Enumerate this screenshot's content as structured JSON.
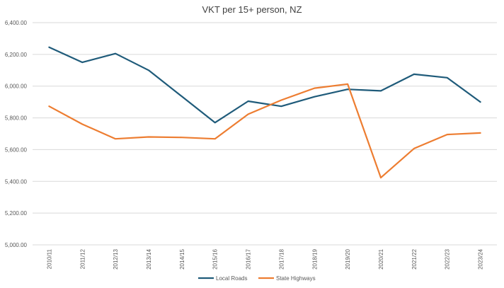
{
  "chart_data": {
    "type": "line",
    "title": "VKT per 15+ person, NZ",
    "xlabel": "",
    "ylabel": "",
    "ylim": [
      5000,
      6400
    ],
    "yticks": [
      "5,000.00",
      "5,200.00",
      "5,400.00",
      "5,600.00",
      "5,800.00",
      "6,000.00",
      "6,200.00",
      "6,400.00"
    ],
    "ytick_values": [
      5000,
      5200,
      5400,
      5600,
      5800,
      6000,
      6200,
      6400
    ],
    "categories": [
      "2010/11",
      "2011/12",
      "2012/13",
      "2013/14",
      "2014/15",
      "2015/16",
      "2016/17",
      "2017/18",
      "2018/19",
      "2019/20",
      "2020/21",
      "2021/22",
      "2022/23",
      "2023/24"
    ],
    "grid": true,
    "legend": "bottom",
    "series": [
      {
        "name": "Local Roads",
        "color": "#1f5b7a",
        "values": [
          6245,
          6150,
          6205,
          6100,
          5935,
          5770,
          5905,
          5873,
          5933,
          5980,
          5970,
          6075,
          6053,
          5900
        ]
      },
      {
        "name": "State Highways",
        "color": "#ed7d31",
        "values": [
          5873,
          5760,
          5668,
          5680,
          5677,
          5668,
          5823,
          5912,
          5987,
          6013,
          5423,
          5607,
          5695,
          5705
        ]
      }
    ]
  }
}
